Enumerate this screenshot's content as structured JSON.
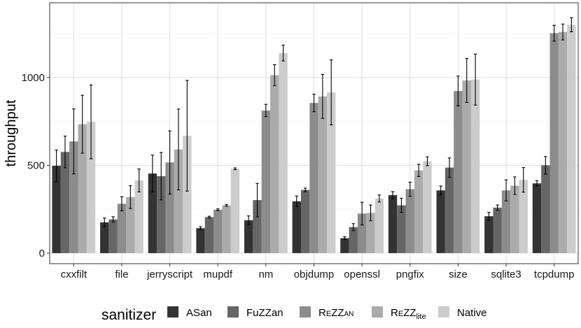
{
  "chart_data": {
    "type": "bar",
    "xlabel": "",
    "ylabel": "throughput",
    "ylim": [
      -60,
      1425
    ],
    "yticks": [
      0,
      500,
      1000
    ],
    "grid": true,
    "legend_position": "bottom",
    "legend_title": "sanitizer",
    "categories": [
      "cxxfilt",
      "file",
      "jerryscript",
      "mupdf",
      "nm",
      "objdump",
      "openssl",
      "pngfix",
      "size",
      "sqlite3",
      "tcpdump"
    ],
    "series": [
      {
        "name": "ASan",
        "label_main": "ASan",
        "label_sub": "",
        "color": "#333333",
        "values": [
          497,
          175,
          453,
          142,
          187,
          295,
          85,
          330,
          357,
          210,
          397
        ],
        "errors": [
          90,
          25,
          105,
          8,
          25,
          30,
          8,
          20,
          25,
          22,
          15
        ]
      },
      {
        "name": "FuZZan",
        "label_main": "FuZZan",
        "label_sub": "",
        "color": "#666666",
        "values": [
          576,
          192,
          438,
          205,
          302,
          360,
          148,
          272,
          487,
          259,
          500
        ],
        "errors": [
          90,
          15,
          135,
          5,
          95,
          10,
          20,
          40,
          55,
          15,
          50
        ]
      },
      {
        "name": "REZZAN",
        "label_main": "REZZ",
        "label_sub": "AN",
        "color": "#8c8c8c",
        "values": [
          636,
          281,
          516,
          247,
          812,
          855,
          225,
          364,
          923,
          357,
          1252
        ],
        "errors": [
          185,
          40,
          180,
          5,
          35,
          50,
          65,
          40,
          85,
          60,
          45
        ]
      },
      {
        "name": "REZZlite",
        "label_main": "REZZ",
        "label_sub": "lite",
        "color": "#ababab",
        "values": [
          734,
          319,
          590,
          272,
          1013,
          892,
          229,
          471,
          983,
          384,
          1259
        ],
        "errors": [
          165,
          65,
          230,
          5,
          60,
          125,
          45,
          35,
          125,
          50,
          45
        ]
      },
      {
        "name": "Native",
        "label_main": "Native",
        "label_sub": "",
        "color": "#cccccc",
        "values": [
          747,
          414,
          668,
          480,
          1139,
          915,
          311,
          523,
          988,
          417,
          1300
        ],
        "errors": [
          210,
          65,
          315,
          5,
          45,
          185,
          20,
          25,
          145,
          70,
          40
        ]
      }
    ]
  }
}
